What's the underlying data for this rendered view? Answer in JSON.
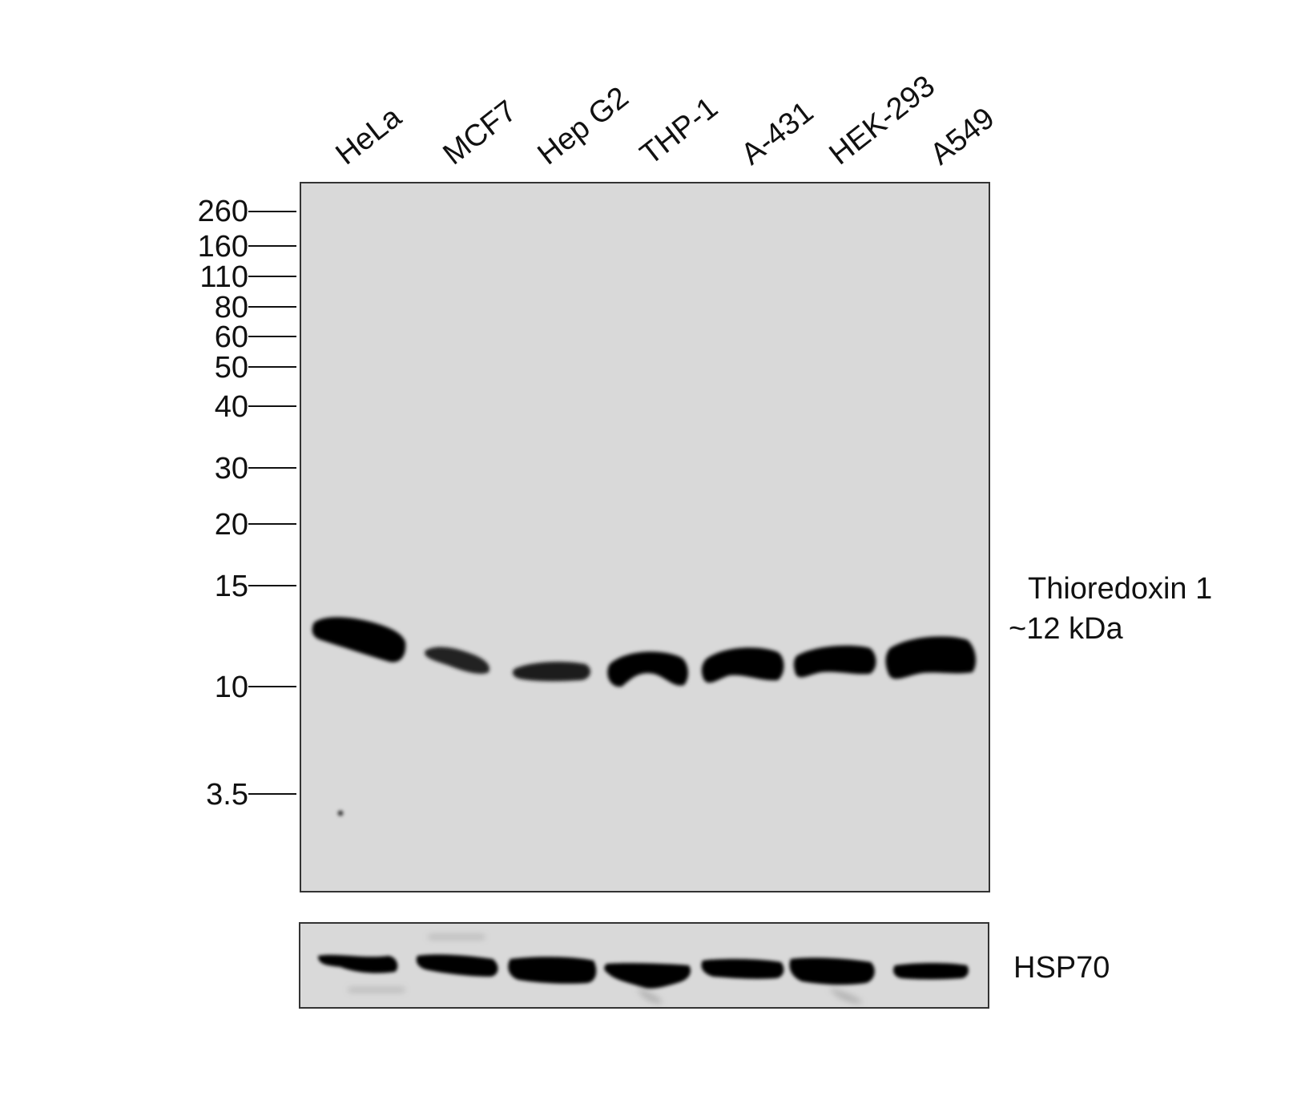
{
  "lanes": [
    "HeLa",
    "MCF7",
    "Hep G2",
    "THP-1",
    "A-431",
    "HEK-293",
    "A549"
  ],
  "markers": [
    "260",
    "160",
    "110",
    "80",
    "60",
    "50",
    "40",
    "30",
    "20",
    "15",
    "10",
    "3.5"
  ],
  "target": {
    "name": "Thioredoxin 1",
    "size": "~12 kDa"
  },
  "loading_control": {
    "name": "HSP70"
  }
}
